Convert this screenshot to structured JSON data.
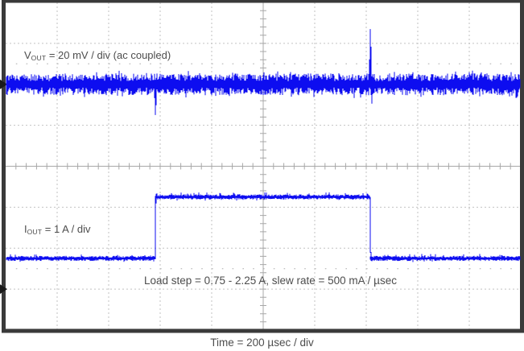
{
  "colors": {
    "trace": "#0d0df0",
    "grid": "#c2c2c2",
    "axis": "#a8a8a8",
    "frame": "#3a3a3a",
    "marker": "#1a1a1a",
    "text": "#4d4d4d",
    "background": "#ffffff"
  },
  "chart_data": {
    "type": "line",
    "subtype": "oscilloscope-capture",
    "title": "",
    "xlabel": "Time = 200 µsec / div",
    "x_usec_per_div": 200,
    "x_divisions": 10,
    "y_divisions": 8,
    "grid": "light gray dotted major gridlines; solid center cross with minor ticks every 1/5 div; dotted minor rows at ±2.5 div",
    "legend_position": "none",
    "annotation": "Load step = 0.75 - 2.25 A, slew rate = 500 mA / µsec",
    "series": [
      {
        "name": "VOUT",
        "label": {
          "base": "V",
          "sub": "OUT",
          "rest": " = 20 mV / div (ac coupled)"
        },
        "mv_per_div": 20,
        "coupling": "ac coupled",
        "baseline_div_from_center": -2,
        "noise_mv_pp": 10,
        "zero_marker_on_left_edge": true,
        "transients": [
          {
            "t_usec": 580,
            "peak_mv": -15,
            "desc": "undershoot at load step-up"
          },
          {
            "t_usec": 1415,
            "peak_mv": 27,
            "desc": "overshoot at load release"
          }
        ]
      },
      {
        "name": "IOUT",
        "label": {
          "base": "I",
          "sub": "OUT",
          "rest": " = 1 A / div"
        },
        "a_per_div": 1,
        "zero_div_from_center": 3,
        "low_a": 0.75,
        "high_a": 2.25,
        "step_up_usec": 580,
        "step_down_usec": 1415,
        "zero_marker_on_left_edge": true
      }
    ]
  }
}
